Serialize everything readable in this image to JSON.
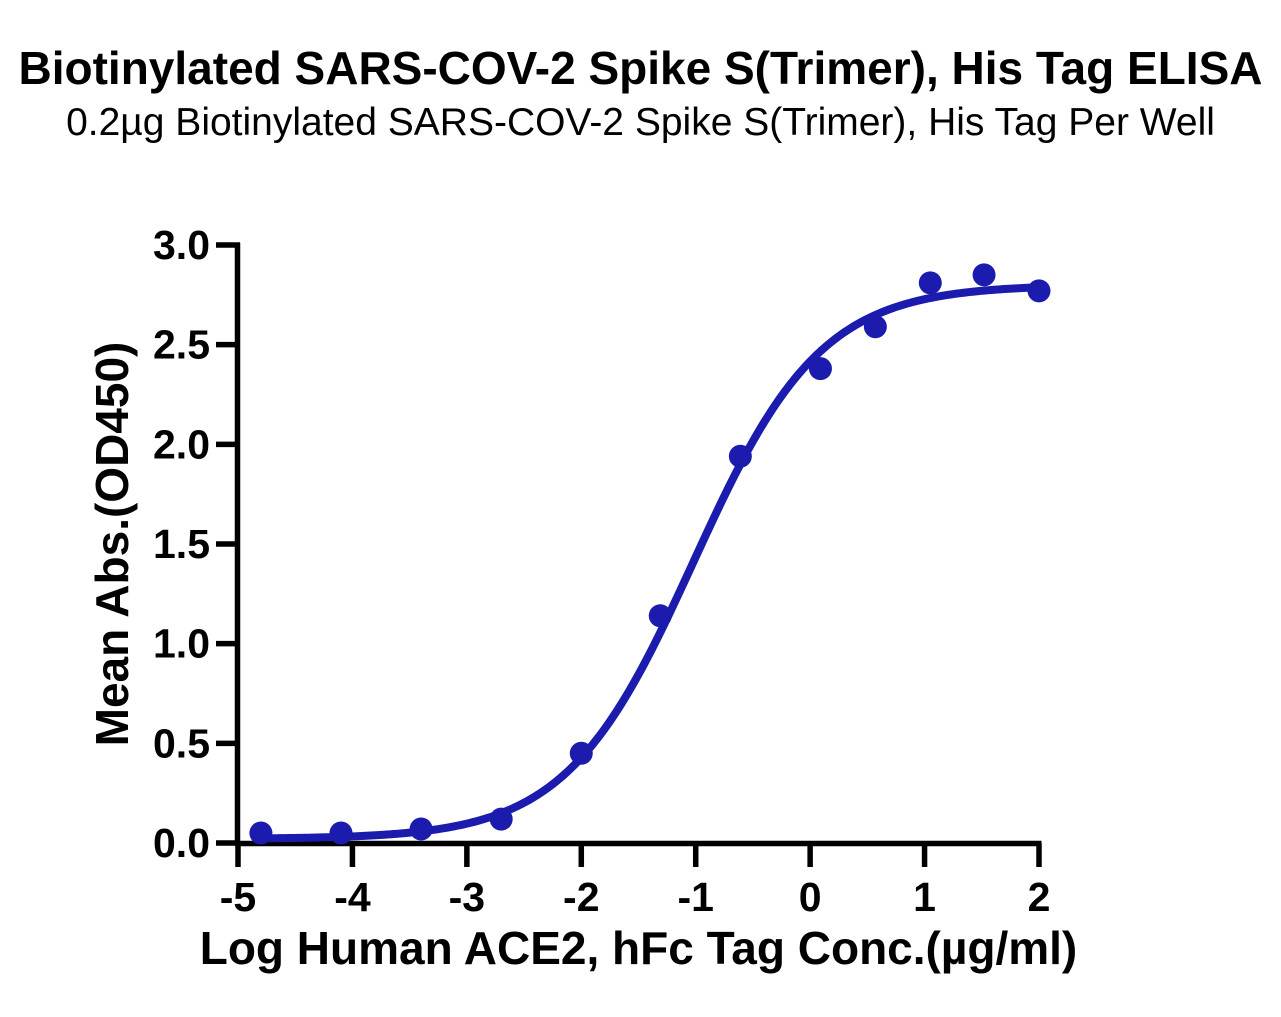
{
  "chart_data": {
    "type": "scatter",
    "title": "Biotinylated SARS-COV-2 Spike S(Trimer), His Tag ELISA",
    "subtitle": "0.2µg Biotinylated SARS-COV-2 Spike S(Trimer), His Tag Per Well",
    "xlabel": "Log Human ACE2, hFc Tag Conc.(µg/ml)",
    "ylabel": "Mean Abs.(OD450)",
    "xlim": [
      -5,
      2
    ],
    "ylim": [
      0.0,
      3.0
    ],
    "x_ticks": [
      -5,
      -4,
      -3,
      -2,
      -1,
      0,
      1,
      2
    ],
    "y_ticks": [
      0.0,
      0.5,
      1.0,
      1.5,
      2.0,
      2.5,
      3.0
    ],
    "grid": false,
    "legend_position": "none",
    "axis_color": "#000000",
    "point_color": "#1b1bad",
    "curve_color": "#1b1bad",
    "points": [
      {
        "x": -4.8,
        "y": 0.05
      },
      {
        "x": -4.1,
        "y": 0.05
      },
      {
        "x": -3.4,
        "y": 0.07
      },
      {
        "x": -2.7,
        "y": 0.12
      },
      {
        "x": -2.0,
        "y": 0.45
      },
      {
        "x": -1.31,
        "y": 1.14
      },
      {
        "x": -0.61,
        "y": 1.94
      },
      {
        "x": 0.09,
        "y": 2.38
      },
      {
        "x": 0.57,
        "y": 2.59
      },
      {
        "x": 1.05,
        "y": 2.81
      },
      {
        "x": 1.52,
        "y": 2.85
      },
      {
        "x": 2.0,
        "y": 2.77
      }
    ],
    "fit_curve": {
      "model": "4PL",
      "bottom": 0.02,
      "top": 2.8,
      "log_ec50": -1.02,
      "hill_slope": 0.78,
      "x_range": [
        -4.8,
        2.02
      ]
    }
  }
}
